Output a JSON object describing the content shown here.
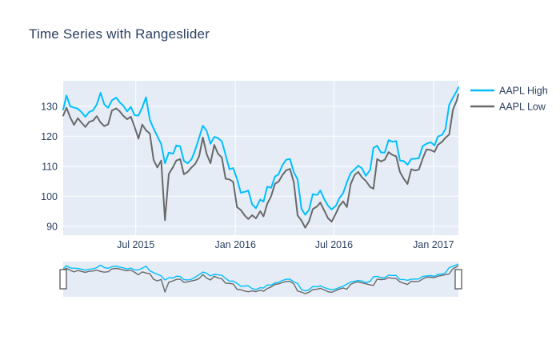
{
  "colors": {
    "page_background": "#ffffff",
    "plot_background": "#e5ecf6",
    "grid": "#ffffff",
    "text": "#2a3f5f",
    "high_line": "#00bfff",
    "low_line": "#696969",
    "handle_fill": "#ffffff",
    "handle_border": "#4a4a4a"
  },
  "chart_data": {
    "type": "line",
    "title": "Time Series with Rangeslider",
    "xlabel": "",
    "ylabel": "",
    "grid": true,
    "xlim": [
      "2015-02-17",
      "2017-02-16"
    ],
    "ylim": [
      87,
      138.5
    ],
    "yticks": [
      90,
      100,
      110,
      120,
      130
    ],
    "xticks": [
      {
        "date": "2015-07-01",
        "label": "Jul 2015"
      },
      {
        "date": "2016-01-01",
        "label": "Jan 2016"
      },
      {
        "date": "2016-07-01",
        "label": "Jul 2016"
      },
      {
        "date": "2017-01-01",
        "label": "Jan 2017"
      }
    ],
    "legend": {
      "position": "top-right",
      "entries": [
        "AAPL High",
        "AAPL Low"
      ]
    },
    "rangeslider": {
      "enabled": true,
      "selected_range": [
        "2015-02-17",
        "2017-02-16"
      ]
    },
    "x": [
      "2015-02-17",
      "2015-02-23",
      "2015-03-02",
      "2015-03-09",
      "2015-03-16",
      "2015-03-23",
      "2015-03-30",
      "2015-04-06",
      "2015-04-13",
      "2015-04-20",
      "2015-04-27",
      "2015-05-04",
      "2015-05-11",
      "2015-05-18",
      "2015-05-26",
      "2015-06-01",
      "2015-06-08",
      "2015-06-15",
      "2015-06-22",
      "2015-06-29",
      "2015-07-06",
      "2015-07-13",
      "2015-07-20",
      "2015-07-27",
      "2015-08-03",
      "2015-08-10",
      "2015-08-17",
      "2015-08-24",
      "2015-08-31",
      "2015-09-08",
      "2015-09-14",
      "2015-09-21",
      "2015-09-28",
      "2015-10-05",
      "2015-10-12",
      "2015-10-19",
      "2015-10-26",
      "2015-11-02",
      "2015-11-09",
      "2015-11-16",
      "2015-11-23",
      "2015-11-30",
      "2015-12-07",
      "2015-12-14",
      "2015-12-21",
      "2015-12-28",
      "2016-01-04",
      "2016-01-11",
      "2016-01-19",
      "2016-01-25",
      "2016-02-01",
      "2016-02-08",
      "2016-02-16",
      "2016-02-22",
      "2016-02-29",
      "2016-03-07",
      "2016-03-14",
      "2016-03-21",
      "2016-03-28",
      "2016-04-04",
      "2016-04-11",
      "2016-04-18",
      "2016-04-25",
      "2016-05-02",
      "2016-05-09",
      "2016-05-16",
      "2016-05-23",
      "2016-05-31",
      "2016-06-06",
      "2016-06-13",
      "2016-06-20",
      "2016-06-27",
      "2016-07-05",
      "2016-07-11",
      "2016-07-18",
      "2016-07-25",
      "2016-08-01",
      "2016-08-08",
      "2016-08-15",
      "2016-08-22",
      "2016-08-29",
      "2016-09-06",
      "2016-09-12",
      "2016-09-19",
      "2016-09-26",
      "2016-10-03",
      "2016-10-10",
      "2016-10-17",
      "2016-10-24",
      "2016-10-31",
      "2016-11-07",
      "2016-11-14",
      "2016-11-21",
      "2016-11-28",
      "2016-12-05",
      "2016-12-12",
      "2016-12-19",
      "2016-12-27",
      "2017-01-03",
      "2017-01-09",
      "2017-01-17",
      "2017-01-23",
      "2017-01-30",
      "2017-02-06",
      "2017-02-13",
      "2017-02-16"
    ],
    "series": [
      {
        "name": "AAPL High",
        "color": "#00bfff",
        "values": [
          128.9,
          133.6,
          130.0,
          129.6,
          129.2,
          128.0,
          126.5,
          128.1,
          128.6,
          130.6,
          134.5,
          130.6,
          129.5,
          132.0,
          132.9,
          131.4,
          130.2,
          128.3,
          129.8,
          127.0,
          126.9,
          129.6,
          133.0,
          125.5,
          122.6,
          120.0,
          117.4,
          111.0,
          114.5,
          114.2,
          116.9,
          116.7,
          111.8,
          111.0,
          112.3,
          115.5,
          119.5,
          123.5,
          121.8,
          117.5,
          119.8,
          119.4,
          118.3,
          113.8,
          109.0,
          109.4,
          105.8,
          101.2,
          101.5,
          101.9,
          97.3,
          96.0,
          98.9,
          98.2,
          103.2,
          102.8,
          106.5,
          107.3,
          110.4,
          112.2,
          112.4,
          108.0,
          105.6,
          95.9,
          93.8,
          95.4,
          100.7,
          100.4,
          101.9,
          99.1,
          96.9,
          95.6,
          96.9,
          99.3,
          101.0,
          104.6,
          107.7,
          108.9,
          110.2,
          109.3,
          106.8,
          108.8,
          116.1,
          116.8,
          114.6,
          114.6,
          118.7,
          118.2,
          118.4,
          111.9,
          111.7,
          110.5,
          112.4,
          112.5,
          112.7,
          116.7,
          117.5,
          118.0,
          116.9,
          119.9,
          120.5,
          122.4,
          130.5,
          132.9,
          135.1,
          136.3
        ]
      },
      {
        "name": "AAPL Low",
        "color": "#696969",
        "values": [
          126.9,
          129.5,
          126.3,
          123.8,
          126.0,
          124.5,
          123.1,
          124.8,
          125.2,
          126.7,
          124.6,
          123.4,
          124.0,
          128.6,
          129.3,
          128.4,
          126.8,
          125.7,
          126.5,
          123.1,
          119.2,
          123.9,
          122.0,
          120.9,
          112.1,
          109.6,
          111.9,
          92.0,
          107.4,
          109.8,
          111.9,
          112.4,
          107.3,
          108.1,
          109.6,
          110.8,
          113.3,
          119.6,
          114.1,
          111.0,
          117.1,
          114.2,
          112.9,
          105.8,
          105.6,
          104.8,
          96.4,
          95.4,
          93.4,
          92.4,
          93.7,
          92.6,
          95.0,
          93.3,
          97.5,
          100.0,
          104.1,
          104.9,
          107.1,
          108.7,
          109.1,
          104.6,
          93.6,
          91.9,
          89.5,
          91.6,
          95.7,
          96.6,
          97.9,
          95.3,
          92.7,
          91.5,
          94.4,
          96.7,
          98.3,
          96.4,
          104.0,
          107.0,
          108.1,
          106.3,
          105.1,
          103.1,
          102.5,
          112.4,
          111.6,
          112.2,
          114.7,
          113.8,
          113.3,
          108.1,
          105.8,
          104.1,
          109.0,
          108.6,
          108.9,
          112.5,
          115.6,
          115.4,
          114.8,
          117.1,
          118.2,
          119.5,
          120.6,
          128.9,
          132.0,
          134.0
        ]
      }
    ]
  }
}
